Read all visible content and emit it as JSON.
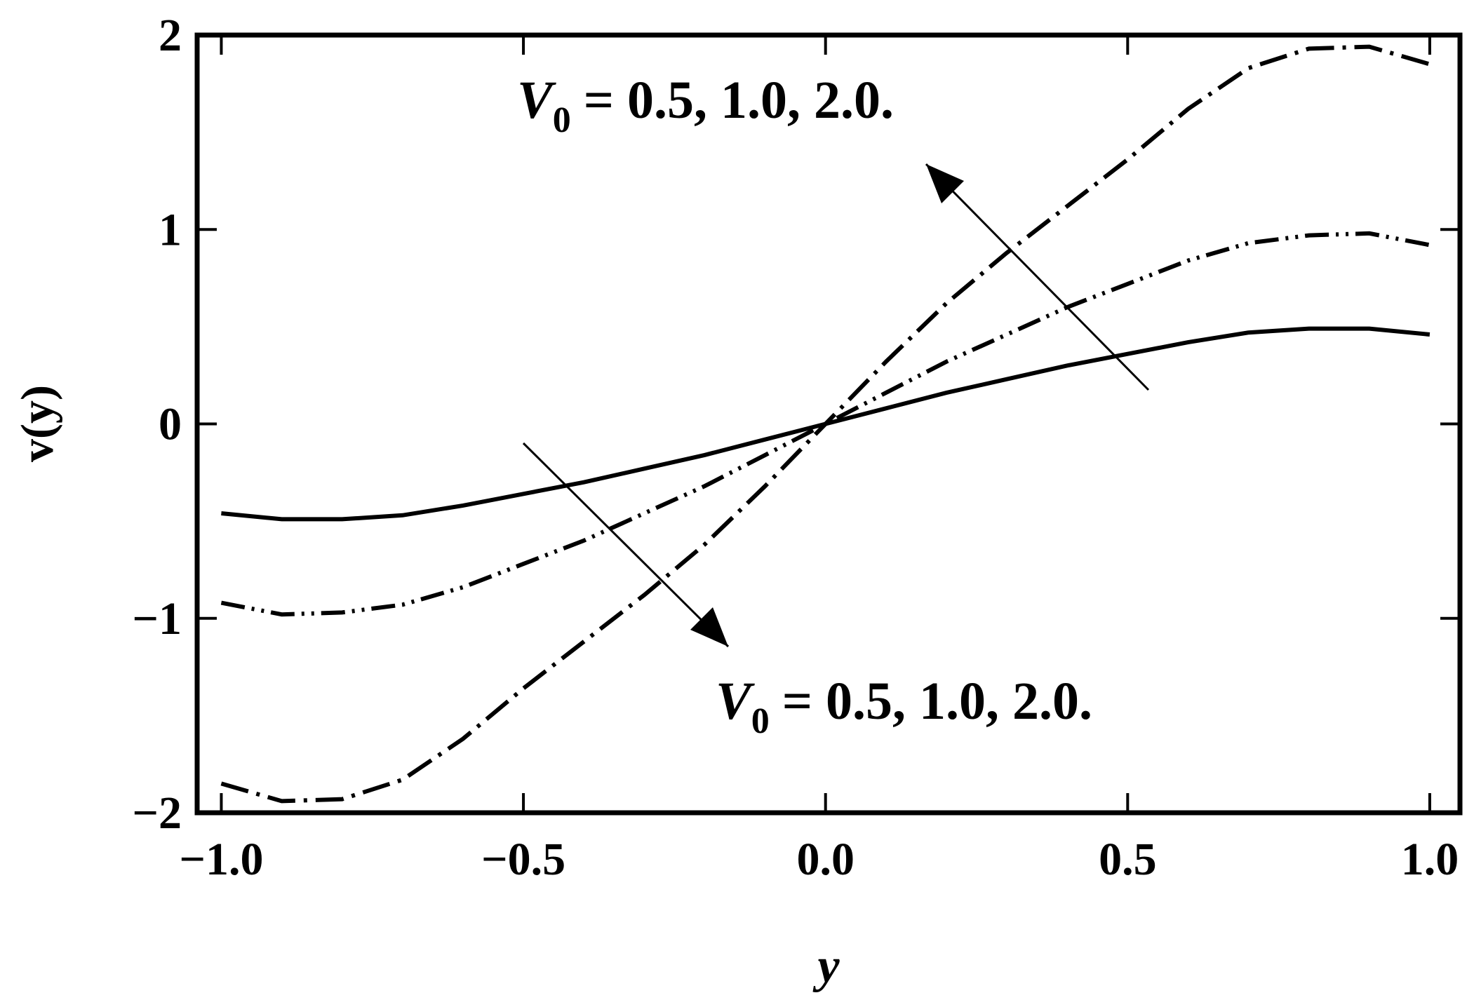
{
  "chart_data": {
    "type": "line",
    "xlabel": "y",
    "ylabel": "v(y)",
    "x": [
      -1.0,
      -0.9,
      -0.8,
      -0.7,
      -0.6,
      -0.5,
      -0.4,
      -0.3,
      -0.2,
      -0.1,
      0.0,
      0.1,
      0.2,
      0.3,
      0.4,
      0.5,
      0.6,
      0.7,
      0.8,
      0.9,
      1.0
    ],
    "series": [
      {
        "color": "#000000",
        "dash": "solid",
        "values": [
          -0.46,
          -0.49,
          -0.49,
          -0.47,
          -0.42,
          -0.36,
          -0.3,
          -0.23,
          -0.16,
          -0.08,
          0,
          0.08,
          0.16,
          0.23,
          0.3,
          0.36,
          0.42,
          0.47,
          0.49,
          0.49,
          0.46
        ]
      },
      {
        "color": "#000000",
        "dash": "dash-dot-dot",
        "values": [
          -0.92,
          -0.98,
          -0.97,
          -0.93,
          -0.84,
          -0.72,
          -0.6,
          -0.46,
          -0.32,
          -0.16,
          0,
          0.16,
          0.32,
          0.46,
          0.6,
          0.72,
          0.84,
          0.93,
          0.97,
          0.98,
          0.92
        ]
      },
      {
        "color": "#000000",
        "dash": "dash-dot",
        "values": [
          -1.85,
          -1.94,
          -1.93,
          -1.83,
          -1.62,
          -1.36,
          -1.12,
          -0.88,
          -0.62,
          -0.32,
          0,
          0.32,
          0.62,
          0.88,
          1.12,
          1.36,
          1.62,
          1.83,
          1.93,
          1.94,
          1.85
        ]
      }
    ],
    "xlim": [
      -1.04,
      1.05
    ],
    "ylim": [
      -2,
      2
    ],
    "xticks": [
      {
        "value": -1.0,
        "label": "−1.0"
      },
      {
        "value": -0.5,
        "label": "−0.5"
      },
      {
        "value": 0.0,
        "label": "0.0"
      },
      {
        "value": 0.5,
        "label": "0.5"
      },
      {
        "value": 1.0,
        "label": "1.0"
      }
    ],
    "yticks": [
      {
        "value": -2,
        "label": "−2"
      },
      {
        "value": -1,
        "label": "−1"
      },
      0,
      1,
      2
    ],
    "annotations": [
      {
        "symbol": "V",
        "subscript": "0",
        "text": "= 0.5,  1.0,  2.0."
      },
      {
        "symbol": "V",
        "subscript": "0",
        "text": "=  0.5,  1.0,  2.0."
      }
    ]
  }
}
